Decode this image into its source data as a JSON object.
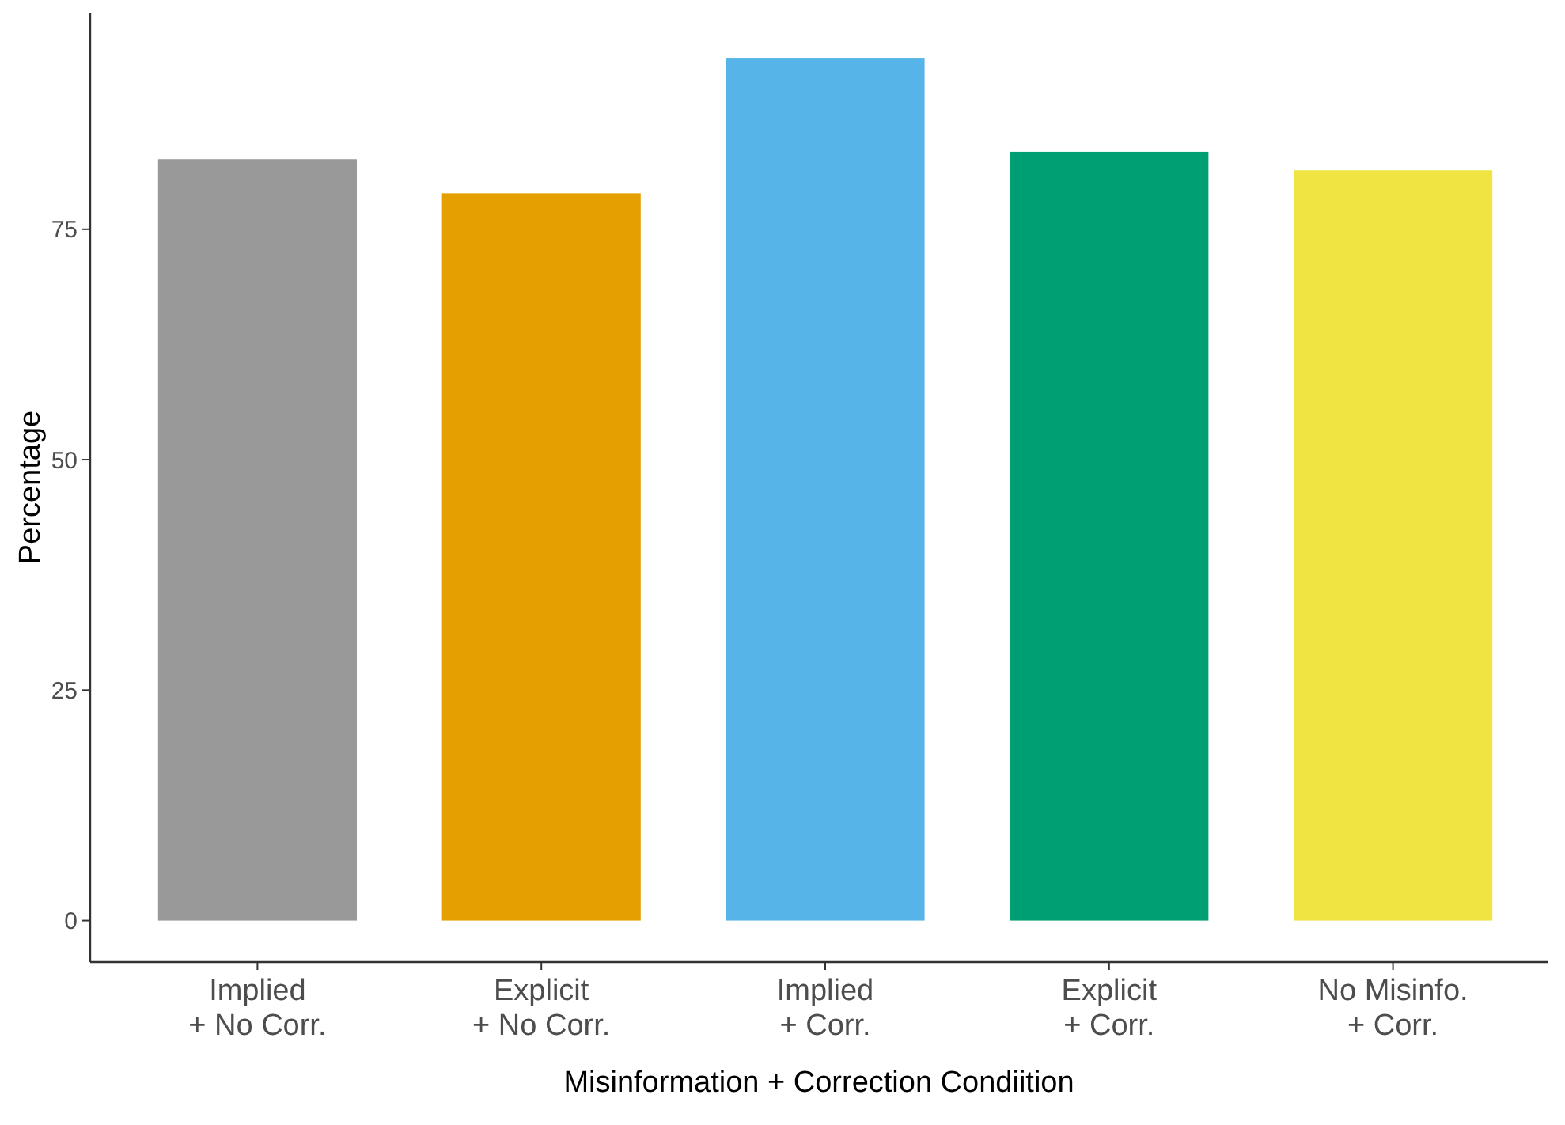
{
  "chart_data": {
    "type": "bar",
    "xlabel": "Misinformation + Correction Condiition",
    "ylabel": "Percentage",
    "categories": [
      "Implied\n+ No Corr.",
      "Explicit\n+ No Corr.",
      "Implied\n+ Corr.",
      "Explicit\n+ Corr.",
      "No Misinfo.\n+ Corr."
    ],
    "values": [
      82.6,
      78.9,
      93.6,
      83.4,
      81.4
    ],
    "colors": [
      "#999999",
      "#e69f00",
      "#56b4e9",
      "#009e73",
      "#f0e442"
    ],
    "ylim": [
      -4.5,
      98.5
    ],
    "yticks": [
      0,
      25,
      50,
      75
    ],
    "grid": false
  }
}
